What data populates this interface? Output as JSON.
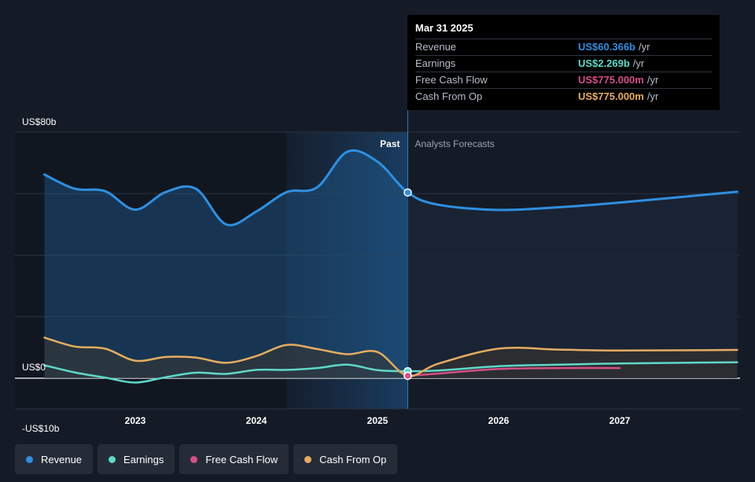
{
  "chart_data": {
    "type": "line",
    "x_ticks": [
      "2023",
      "2024",
      "2025",
      "2026",
      "2027"
    ],
    "y_ticks": [
      {
        "value": 80,
        "label": "US$80b"
      },
      {
        "value": 0,
        "label": "US$0"
      },
      {
        "value": -10,
        "label": "-US$10b"
      }
    ],
    "ylim": [
      -10,
      80
    ],
    "xlim": [
      2022.25,
      2027.97
    ],
    "units": "billions USD",
    "past_label": "Past",
    "forecast_label": "Analysts Forecasts",
    "divider_x": 2025.25,
    "highlight_range": [
      2024.25,
      2025.25
    ],
    "series": [
      {
        "name": "Revenue",
        "color": "#2f8fe0",
        "points": [
          [
            2022.25,
            66.2
          ],
          [
            2022.5,
            61.6
          ],
          [
            2022.75,
            60.8
          ],
          [
            2023.0,
            54.8
          ],
          [
            2023.25,
            60.5
          ],
          [
            2023.5,
            61.6
          ],
          [
            2023.75,
            50.0
          ],
          [
            2024.0,
            54.2
          ],
          [
            2024.25,
            60.5
          ],
          [
            2024.5,
            62.0
          ],
          [
            2024.75,
            73.6
          ],
          [
            2025.0,
            70.4
          ],
          [
            2025.25,
            60.366
          ],
          [
            2025.5,
            56.4
          ],
          [
            2026.0,
            54.7
          ],
          [
            2026.5,
            55.6
          ],
          [
            2027.0,
            57.1
          ],
          [
            2027.97,
            60.6
          ]
        ]
      },
      {
        "name": "Earnings",
        "color": "#5fd8c9",
        "points": [
          [
            2022.25,
            4.2
          ],
          [
            2022.5,
            1.9
          ],
          [
            2022.75,
            0.2
          ],
          [
            2023.0,
            -1.4
          ],
          [
            2023.25,
            0.3
          ],
          [
            2023.5,
            1.8
          ],
          [
            2023.75,
            1.4
          ],
          [
            2024.0,
            2.7
          ],
          [
            2024.25,
            2.7
          ],
          [
            2024.5,
            3.3
          ],
          [
            2024.75,
            4.4
          ],
          [
            2025.0,
            2.6
          ],
          [
            2025.25,
            2.269
          ],
          [
            2025.5,
            2.5
          ],
          [
            2026.0,
            3.9
          ],
          [
            2026.5,
            4.4
          ],
          [
            2027.0,
            4.8
          ],
          [
            2027.97,
            5.2
          ]
        ]
      },
      {
        "name": "Free Cash Flow",
        "color": "#d44f86",
        "points": [
          [
            2025.25,
            0.775
          ],
          [
            2025.5,
            1.5
          ],
          [
            2026.0,
            3.0
          ],
          [
            2026.5,
            3.3
          ],
          [
            2027.0,
            3.3
          ]
        ]
      },
      {
        "name": "Cash From Op",
        "color": "#e5ac62",
        "points": [
          [
            2022.25,
            13.2
          ],
          [
            2022.5,
            10.3
          ],
          [
            2022.75,
            9.6
          ],
          [
            2023.0,
            5.7
          ],
          [
            2023.25,
            6.9
          ],
          [
            2023.5,
            6.7
          ],
          [
            2023.75,
            5.0
          ],
          [
            2024.0,
            7.2
          ],
          [
            2024.25,
            10.8
          ],
          [
            2024.5,
            9.5
          ],
          [
            2024.75,
            7.8
          ],
          [
            2025.0,
            8.5
          ],
          [
            2025.25,
            0.775
          ],
          [
            2025.5,
            4.7
          ],
          [
            2026.0,
            9.6
          ],
          [
            2026.5,
            9.3
          ],
          [
            2027.0,
            9.0
          ],
          [
            2027.97,
            9.2
          ]
        ]
      }
    ]
  },
  "tooltip": {
    "date": "Mar 31 2025",
    "rows": [
      {
        "label": "Revenue",
        "value": "US$60.366b",
        "unit": "/yr",
        "color": "#2f8fe0"
      },
      {
        "label": "Earnings",
        "value": "US$2.269b",
        "unit": "/yr",
        "color": "#5fd8c9"
      },
      {
        "label": "Free Cash Flow",
        "value": "US$775.000m",
        "unit": "/yr",
        "color": "#d44f86"
      },
      {
        "label": "Cash From Op",
        "value": "US$775.000m",
        "unit": "/yr",
        "color": "#e5ac62"
      }
    ]
  },
  "legend": [
    {
      "label": "Revenue",
      "color": "#2f8fe0"
    },
    {
      "label": "Earnings",
      "color": "#5fd8c9"
    },
    {
      "label": "Free Cash Flow",
      "color": "#d44f86"
    },
    {
      "label": "Cash From Op",
      "color": "#e5ac62"
    }
  ]
}
